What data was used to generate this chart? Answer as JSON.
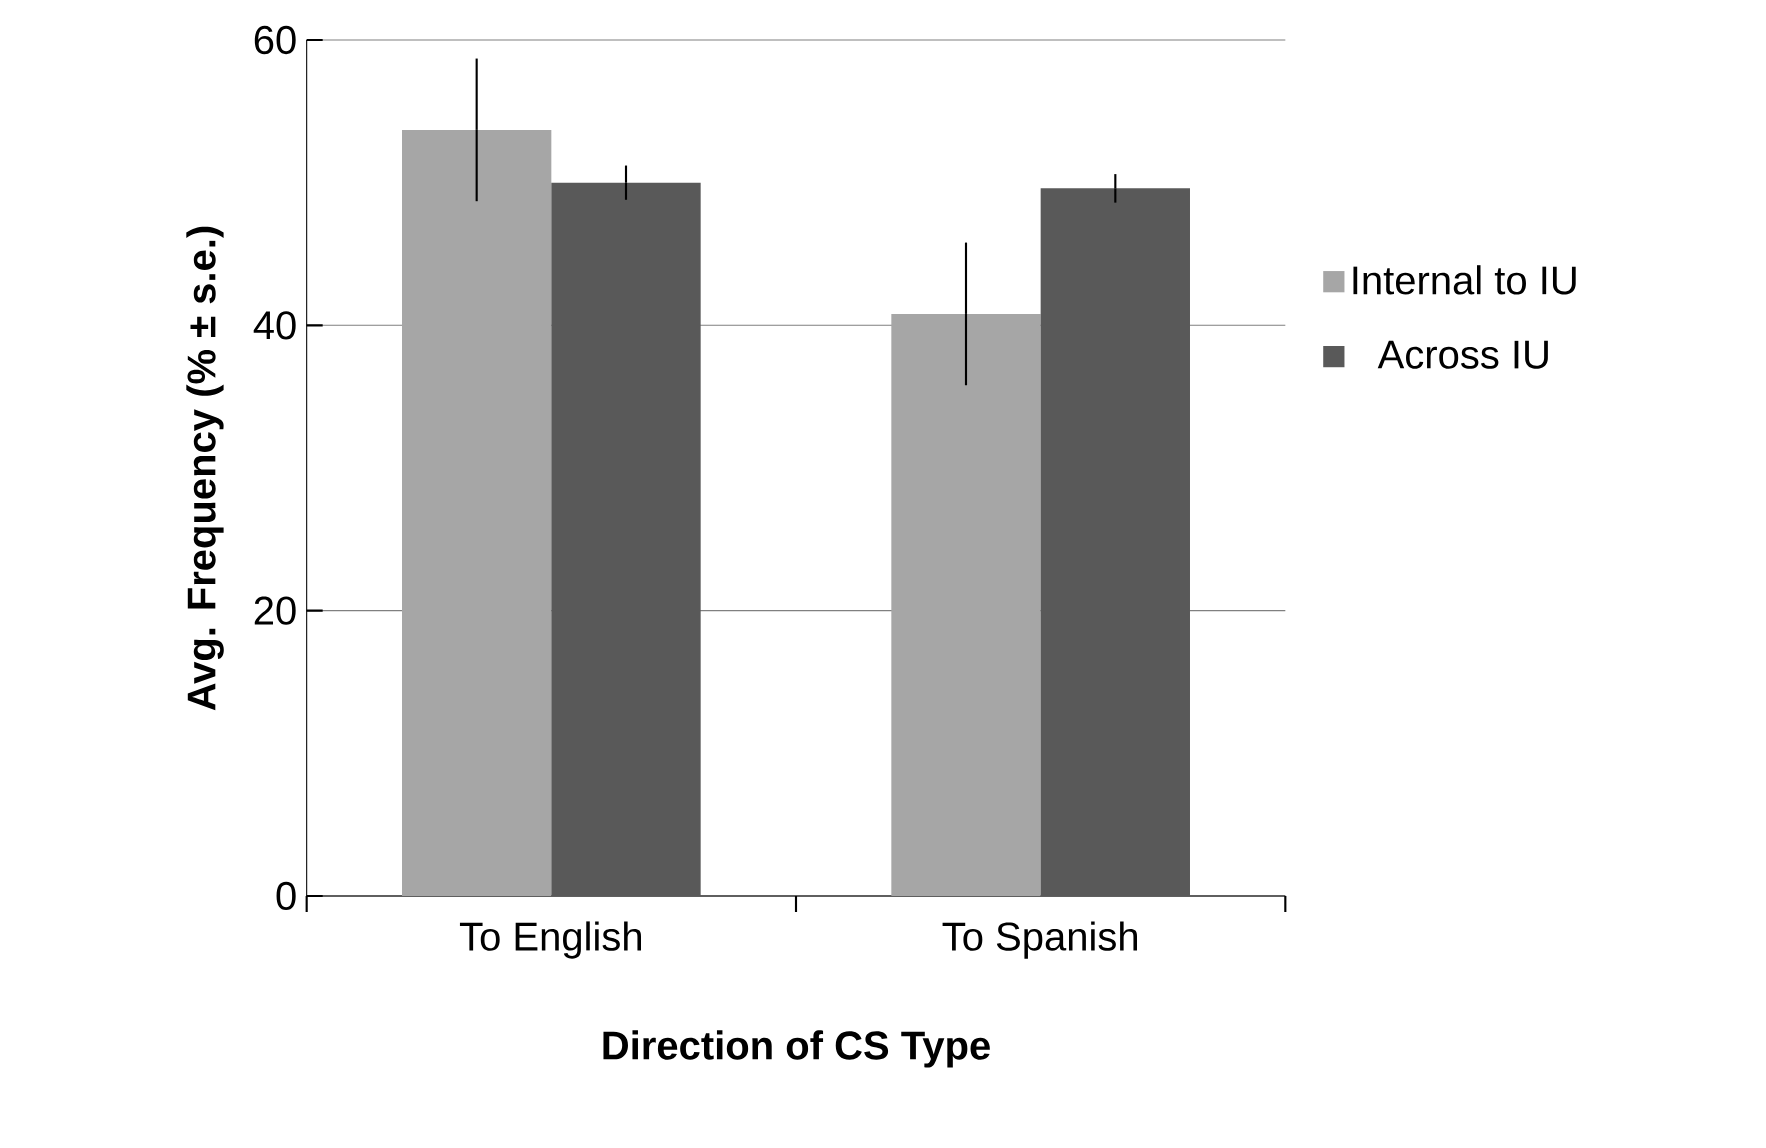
{
  "chart_data": {
    "type": "bar",
    "xlabel": "Direction of CS Type",
    "ylabel": "Avg. Frequency (% ± s.e.)",
    "categories": [
      "To English",
      "To Spanish"
    ],
    "series": [
      {
        "name": "Internal to IU",
        "color": "#a6a6a6",
        "values": [
          53.7,
          40.8
        ],
        "errors": [
          5,
          5
        ]
      },
      {
        "name": "Across IU",
        "color": "#595959",
        "values": [
          50.0,
          49.6
        ],
        "errors": [
          1.2,
          1
        ]
      }
    ],
    "ylim": [
      0,
      60
    ],
    "yticks": [
      0,
      20,
      40,
      60
    ],
    "grid": "y",
    "legend": "right"
  }
}
